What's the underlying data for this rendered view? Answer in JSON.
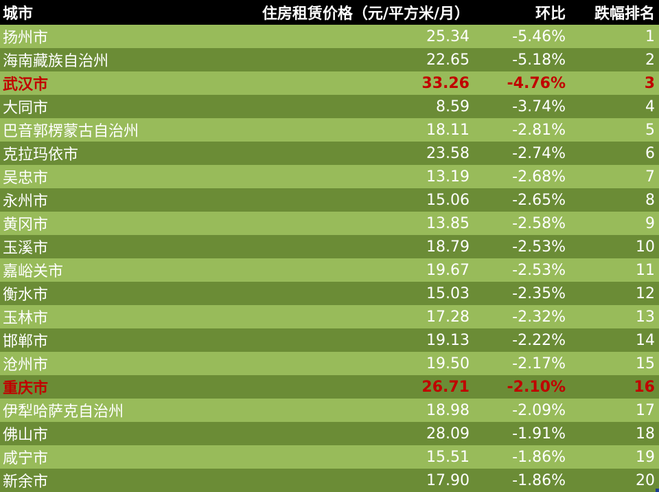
{
  "table": {
    "headers": {
      "city": "城市",
      "rent": "住房租赁价格（元/平方米/月）",
      "mom": "环比",
      "rank": "跌幅排名"
    },
    "rows": [
      {
        "city": "扬州市",
        "rent": "25.34",
        "mom": "-5.46%",
        "rank": "1",
        "highlight": false
      },
      {
        "city": "海南藏族自治州",
        "rent": "22.65",
        "mom": "-5.18%",
        "rank": "2",
        "highlight": false
      },
      {
        "city": "武汉市",
        "rent": "33.26",
        "mom": "-4.76%",
        "rank": "3",
        "highlight": true
      },
      {
        "city": "大同市",
        "rent": "8.59",
        "mom": "-3.74%",
        "rank": "4",
        "highlight": false
      },
      {
        "city": "巴音郭楞蒙古自治州",
        "rent": "18.11",
        "mom": "-2.81%",
        "rank": "5",
        "highlight": false
      },
      {
        "city": "克拉玛依市",
        "rent": "23.58",
        "mom": "-2.74%",
        "rank": "6",
        "highlight": false
      },
      {
        "city": "吴忠市",
        "rent": "13.19",
        "mom": "-2.68%",
        "rank": "7",
        "highlight": false
      },
      {
        "city": "永州市",
        "rent": "15.06",
        "mom": "-2.65%",
        "rank": "8",
        "highlight": false
      },
      {
        "city": "黄冈市",
        "rent": "13.85",
        "mom": "-2.58%",
        "rank": "9",
        "highlight": false
      },
      {
        "city": "玉溪市",
        "rent": "18.79",
        "mom": "-2.53%",
        "rank": "10",
        "highlight": false
      },
      {
        "city": "嘉峪关市",
        "rent": "19.67",
        "mom": "-2.53%",
        "rank": "11",
        "highlight": false
      },
      {
        "city": "衡水市",
        "rent": "15.03",
        "mom": "-2.35%",
        "rank": "12",
        "highlight": false
      },
      {
        "city": "玉林市",
        "rent": "17.28",
        "mom": "-2.32%",
        "rank": "13",
        "highlight": false
      },
      {
        "city": "邯郸市",
        "rent": "19.13",
        "mom": "-2.22%",
        "rank": "14",
        "highlight": false
      },
      {
        "city": "沧州市",
        "rent": "19.50",
        "mom": "-2.17%",
        "rank": "15",
        "highlight": false
      },
      {
        "city": "重庆市",
        "rent": "26.71",
        "mom": "-2.10%",
        "rank": "16",
        "highlight": true
      },
      {
        "city": "伊犁哈萨克自治州",
        "rent": "18.98",
        "mom": "-2.09%",
        "rank": "17",
        "highlight": false
      },
      {
        "city": "佛山市",
        "rent": "28.09",
        "mom": "-1.91%",
        "rank": "18",
        "highlight": false
      },
      {
        "city": "咸宁市",
        "rent": "15.51",
        "mom": "-1.86%",
        "rank": "19",
        "highlight": false
      },
      {
        "city": "新余市",
        "rent": "17.90",
        "mom": "-1.86%",
        "rank": "20",
        "highlight": false
      }
    ]
  },
  "colors": {
    "header_bg": "#000000",
    "row_light": "#98bb5a",
    "row_dark": "#6b8c36",
    "highlight_text": "#c00000"
  }
}
